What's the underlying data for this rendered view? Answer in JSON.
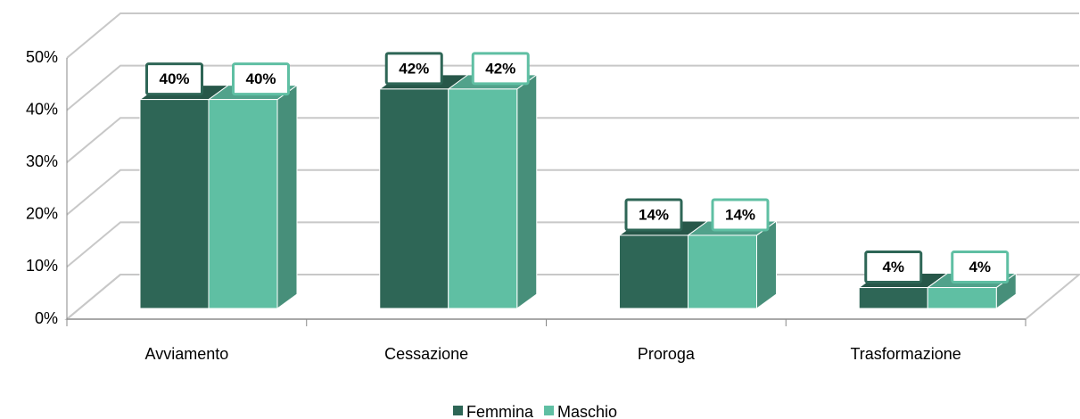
{
  "chart_data": {
    "type": "bar3d",
    "categories": [
      "Avviamento",
      "Cessazione",
      "Proroga",
      "Trasformazione"
    ],
    "series": [
      {
        "name": "Femmina",
        "color": "#2e6656",
        "values": [
          40,
          42,
          14,
          4
        ],
        "value_labels": [
          "40%",
          "42%",
          "14%",
          "4%"
        ]
      },
      {
        "name": "Maschio",
        "color": "#5fbfa3",
        "values": [
          40,
          42,
          14,
          4
        ],
        "value_labels": [
          "40%",
          "42%",
          "14%",
          "4%"
        ]
      }
    ],
    "ylim": [
      0,
      50
    ],
    "yticks": [
      {
        "value": 0,
        "label": "0%"
      },
      {
        "value": 10,
        "label": "10%"
      },
      {
        "value": 20,
        "label": "20%"
      },
      {
        "value": 30,
        "label": "30%"
      },
      {
        "value": 40,
        "label": "40%"
      },
      {
        "value": 50,
        "label": "50%"
      }
    ],
    "grid": true,
    "legend": "bottom"
  }
}
